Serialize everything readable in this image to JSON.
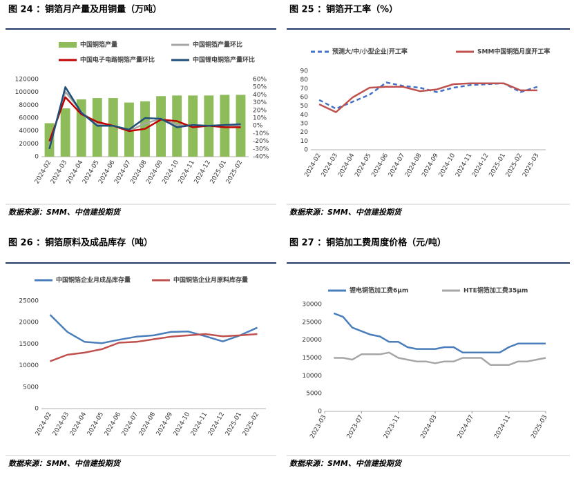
{
  "chart_data": [
    {
      "type": "combo",
      "title": "图 24 ：铜箔月产量及用铜量（万吨）",
      "source": "数据来源：SMM、中信建投期货",
      "categories": [
        "2024-02",
        "2024-03",
        "2024-04",
        "2024-05",
        "2024-06",
        "2024-07",
        "2024-08",
        "2024-09",
        "2024-10",
        "2024-11",
        "2024-12",
        "2025-01",
        "2025-02"
      ],
      "series": [
        {
          "name": "中国铜箔产量",
          "type": "bar",
          "color": "#8fbc5a",
          "values": [
            52000,
            75000,
            89000,
            91000,
            91000,
            84000,
            86000,
            94000,
            95000,
            95000,
            95000,
            96000,
            96000
          ]
        },
        {
          "name": "中国铜箔产量环比",
          "type": "line",
          "axis": "y2",
          "color": "#a6a6a6",
          "values": [
            -25,
            44,
            18,
            2,
            0,
            -7,
            3,
            9,
            1,
            0,
            0,
            1,
            0
          ]
        },
        {
          "name": "中国电子电路铜箔产量环比",
          "type": "line",
          "axis": "y2",
          "color": "#c00000",
          "values": [
            -20,
            37,
            15,
            5,
            0,
            -7,
            -4,
            8,
            6,
            -2,
            0,
            -2,
            -2
          ]
        },
        {
          "name": "中国锂电铜箔产量环比",
          "type": "line",
          "axis": "y2",
          "color": "#1f4e79",
          "values": [
            -30,
            50,
            17,
            0,
            0,
            -5,
            10,
            9,
            -2,
            1,
            0,
            1,
            2
          ]
        }
      ],
      "ylim": [
        0,
        120000
      ],
      "yticks": [
        0,
        20000,
        40000,
        60000,
        80000,
        100000,
        120000
      ],
      "y2lim": [
        -40,
        60
      ],
      "y2ticks": [
        {
          "value": -40,
          "label": "-40%"
        },
        {
          "value": -30,
          "label": "-30%"
        },
        {
          "value": -20,
          "label": "-20%"
        },
        {
          "value": -10,
          "label": "-10%"
        },
        {
          "value": 0,
          "label": "0%"
        },
        {
          "value": 10,
          "label": "10%"
        },
        {
          "value": 20,
          "label": "20%"
        },
        {
          "value": 30,
          "label": "30%"
        },
        {
          "value": 40,
          "label": "40%"
        },
        {
          "value": 50,
          "label": "50%"
        },
        {
          "value": 60,
          "label": "60%"
        }
      ]
    },
    {
      "type": "line",
      "title": "图 25 ：铜箔开工率（%）",
      "source": "数据来源：SMM、中信建投期货",
      "categories": [
        "2024-02",
        "2024-03",
        "2024-04",
        "2024-05",
        "2024-06",
        "2024-07",
        "2024-08",
        "2024-09",
        "2024-10",
        "2024-11",
        "2024-12",
        "2025-01",
        "2025-02",
        "2025-03"
      ],
      "series": [
        {
          "name": "预测大/中/小型企业|开工率",
          "type": "line",
          "dash": true,
          "color": "#4472c4",
          "values": [
            57,
            47,
            55,
            63,
            77,
            73,
            71,
            66,
            71,
            74,
            75,
            76,
            66,
            72
          ]
        },
        {
          "name": "SMM中国铜箔月度开工率",
          "type": "line",
          "color": "#c0504d",
          "values": [
            52,
            43,
            60,
            71,
            72,
            72,
            67,
            69,
            75,
            76,
            76,
            76,
            68,
            68
          ]
        }
      ],
      "ylim": [
        0,
        90
      ],
      "yticks": [
        0,
        10,
        20,
        30,
        40,
        50,
        60,
        70,
        80,
        90
      ]
    },
    {
      "type": "line",
      "title": "图 26 ：铜箔原料及成品库存（吨）",
      "source": "数据来源：SMM、中信建投期货",
      "categories": [
        "2024-02",
        "2024-03",
        "2024-04",
        "2024-05",
        "2024-06",
        "2024-07",
        "2024-08",
        "2024-09",
        "2024-10",
        "2024-11",
        "2024-12",
        "2025-01",
        "2025-02"
      ],
      "series": [
        {
          "name": "中国铜箔企业月成品库存量",
          "type": "line",
          "color": "#4a7ebb",
          "values": [
            21800,
            17800,
            15500,
            15200,
            16000,
            16700,
            17000,
            17800,
            17900,
            16800,
            15600,
            17000,
            18800
          ]
        },
        {
          "name": "中国铜箔企业月原料库存量",
          "type": "line",
          "color": "#c0504d",
          "values": [
            11000,
            12500,
            13000,
            13800,
            15300,
            15500,
            16100,
            16700,
            17000,
            17300,
            16800,
            17000,
            17300
          ]
        }
      ],
      "ylim": [
        0,
        25000
      ],
      "yticks": [
        0,
        5000,
        10000,
        15000,
        20000,
        25000
      ]
    },
    {
      "type": "line",
      "title": "图 27 ：铜箔加工费周度价格（元/吨）",
      "source": "数据来源：SMM、中信建投期货",
      "x": [
        "2023-04",
        "2023-05",
        "2023-06",
        "2023-07",
        "2023-08",
        "2023-09",
        "2023-10",
        "2023-11",
        "2023-12",
        "2024-01",
        "2024-02",
        "2024-03",
        "2024-04",
        "2024-05",
        "2024-06",
        "2024-07",
        "2024-08",
        "2024-09",
        "2024-10",
        "2024-11",
        "2024-12",
        "2025-01",
        "2025-02",
        "2025-03"
      ],
      "series": [
        {
          "name": "锂电铜箔加工费6μm",
          "type": "line",
          "color": "#4a7ebb",
          "values": [
            27500,
            26500,
            23500,
            22500,
            21500,
            21000,
            19500,
            19500,
            18000,
            17500,
            17500,
            17500,
            18000,
            18000,
            16500,
            16500,
            16500,
            16500,
            16500,
            18000,
            19000,
            19000,
            19000,
            19000
          ]
        },
        {
          "name": "HTE铜箔加工费35μm",
          "type": "line",
          "color": "#a6a6a6",
          "values": [
            15000,
            15000,
            14500,
            16000,
            16000,
            16000,
            16500,
            15000,
            14500,
            14000,
            14000,
            13500,
            14000,
            14000,
            15000,
            15000,
            15000,
            13000,
            13000,
            13000,
            14000,
            14000,
            14500,
            15000
          ]
        }
      ],
      "xlim": [
        "2023-03",
        "2025-03"
      ],
      "xticks": [
        "2023-03",
        "2023-07",
        "2023-11",
        "2024-03",
        "2024-07",
        "2024-11",
        "2025-03"
      ],
      "ylim": [
        0,
        30000
      ],
      "yticks": [
        0,
        5000,
        10000,
        15000,
        20000,
        25000,
        30000
      ]
    }
  ]
}
